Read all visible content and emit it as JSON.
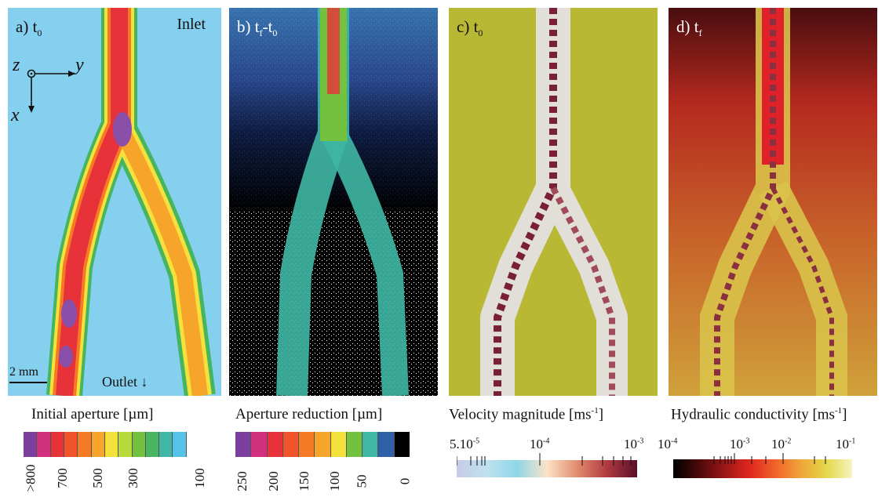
{
  "panels": {
    "a": {
      "letter": "a)",
      "time": "t",
      "time_sub": "0",
      "inlet": "Inlet",
      "axis_z": "z",
      "axis_y": "y",
      "axis_x": "x",
      "scale": "2 mm",
      "outlet": "Outlet"
    },
    "b": {
      "letter": "b)",
      "time": "t",
      "time_sub": "f",
      "minus": "-t",
      "minus_sub": "0"
    },
    "c": {
      "letter": "c)",
      "time": "t",
      "time_sub": "0"
    },
    "d": {
      "letter": "d)",
      "time": "t",
      "time_sub": "f"
    }
  },
  "colorbars": {
    "aperture": {
      "title": "Initial aperture [µm]",
      "colors": [
        "#7b3fa0",
        "#d0307e",
        "#e8323a",
        "#f0542b",
        "#f57a25",
        "#f7a52a",
        "#f4e13c",
        "#b6d93c",
        "#72c13f",
        "#49b560",
        "#3fb7a4",
        "#56c2e8",
        "#ffffff"
      ],
      "labels": [
        ">800",
        "700",
        "500",
        "300",
        "100"
      ]
    },
    "reduction": {
      "title": "Aperture reduction [µm]",
      "colors": [
        "#7b3fa0",
        "#d0307e",
        "#e8323a",
        "#f0542b",
        "#f57a25",
        "#f7a52a",
        "#f4e13c",
        "#72c13f",
        "#3fb7a4",
        "#2f5fa8",
        "#000000"
      ],
      "labels": [
        "250",
        "200",
        "150",
        "100",
        "50",
        "0"
      ]
    },
    "velocity": {
      "title_main": "Velocity magnitude [ms",
      "title_sup": "-1",
      "title_end": "]",
      "tick_min": "5.10",
      "tick_min_sup": "-5",
      "tick_mid": "10",
      "tick_mid_sup": "-4",
      "tick_max": "10",
      "tick_max_sup": "-3"
    },
    "conductivity": {
      "title_main": "Hydraulic conductivity [ms",
      "title_sup": "-1",
      "title_end": "]",
      "ticks": [
        {
          "base": "10",
          "sup": "-4"
        },
        {
          "base": "10",
          "sup": "-3"
        },
        {
          "base": "10",
          "sup": "-2"
        },
        {
          "base": "10",
          "sup": "-1"
        }
      ]
    }
  }
}
